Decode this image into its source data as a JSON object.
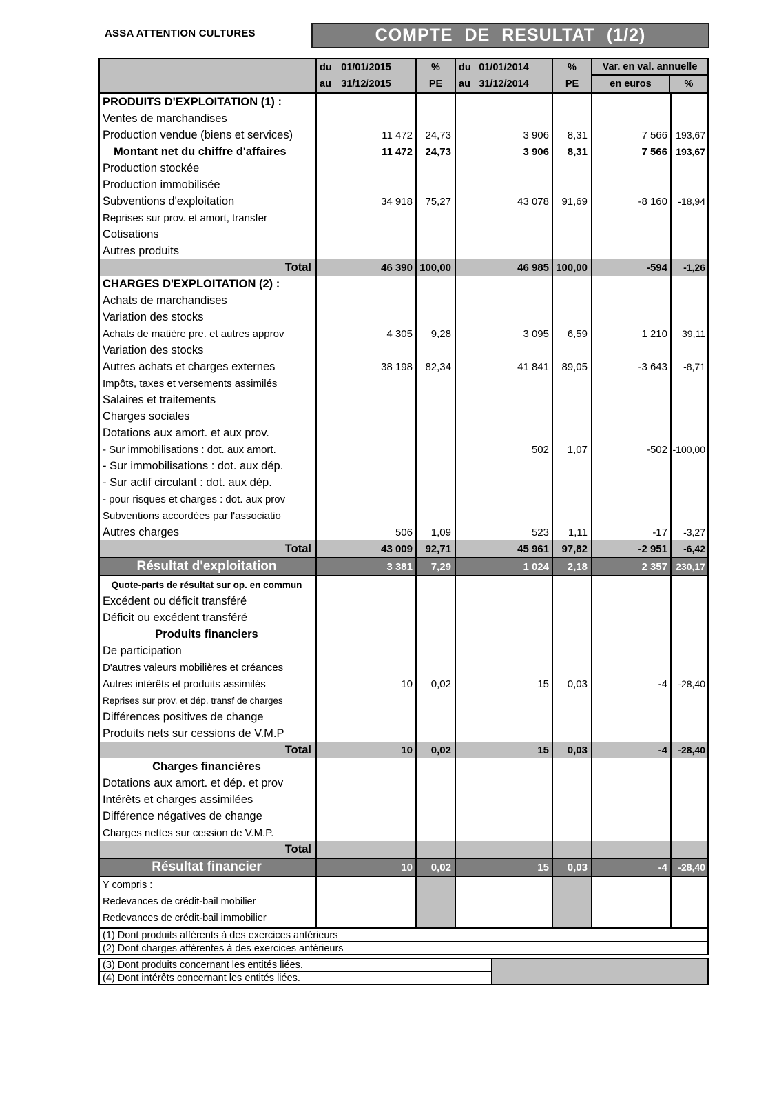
{
  "company": "ASSA ATTENTION CULTURES",
  "title": "COMPTE DE RESULTAT (1/2)",
  "colors": {
    "title_band_gray": "#7f7f7f",
    "result_band_gray": "#7f7f7f",
    "cell_silver": "#c0c0c0",
    "border_black": "#000000",
    "band_text_white": "#ffffff"
  },
  "table": {
    "header": {
      "period1": {
        "from": "du",
        "from_date": "01/01/2015",
        "to": "au",
        "to_date": "31/12/2015"
      },
      "pct1": {
        "top": "%",
        "bottom": "PE"
      },
      "period2": {
        "from": "du",
        "from_date": "01/01/2014",
        "to": "au",
        "to_date": "31/12/2014"
      },
      "pct2": {
        "top": "%",
        "bottom": "PE"
      },
      "variation": {
        "title": "Var. en val. annuelle",
        "col1": "en euros",
        "col2": "%"
      }
    },
    "rows": [
      {
        "l": "PRODUITS D'EXPLOITATION (1) :",
        "s": "section"
      },
      {
        "l": "Ventes de marchandises"
      },
      {
        "l": "Production vendue (biens et services)",
        "v": [
          "11 472",
          "24,73",
          "3 906",
          "8,31",
          "7 566",
          "193,67"
        ]
      },
      {
        "l": "Montant net du chiffre d'affaires",
        "s": "boldind",
        "v": [
          "11 472",
          "24,73",
          "3 906",
          "8,31",
          "7 566",
          "193,67"
        ]
      },
      {
        "l": "Production stockée"
      },
      {
        "l": "Production immobilisée"
      },
      {
        "l": "Subventions d'exploitation",
        "v": [
          "34 918",
          "75,27",
          "43 078",
          "91,69",
          "-8 160",
          "-18,94"
        ]
      },
      {
        "l": "Reprises sur prov. et amort, transfer",
        "s": "cond"
      },
      {
        "l": "Cotisations"
      },
      {
        "l": "Autres produits"
      },
      {
        "l": "Total",
        "s": "total",
        "v": [
          "46 390",
          "100,00",
          "46 985",
          "100,00",
          "-594",
          "-1,26"
        ]
      },
      {
        "l": "CHARGES D'EXPLOITATION (2) :",
        "s": "section"
      },
      {
        "l": "Achats de marchandises"
      },
      {
        "l": "Variation des stocks"
      },
      {
        "l": "Achats de matière pre. et autres approv",
        "s": "cond",
        "v": [
          "4 305",
          "9,28",
          "3 095",
          "6,59",
          "1 210",
          "39,11"
        ]
      },
      {
        "l": "Variation des stocks"
      },
      {
        "l": "Autres achats et charges externes",
        "v": [
          "38 198",
          "82,34",
          "41 841",
          "89,05",
          "-3 643",
          "-8,71"
        ]
      },
      {
        "l": "Impôts, taxes et versements assimilés",
        "s": "cond"
      },
      {
        "l": "Salaires et traitements"
      },
      {
        "l": "Charges sociales"
      },
      {
        "l": "Dotations aux amort. et aux prov."
      },
      {
        "l": "- Sur immobilisations : dot. aux amort.",
        "s": "cond",
        "v": [
          "",
          "",
          "502",
          "1,07",
          "-502",
          "-100,00"
        ]
      },
      {
        "l": "- Sur immobilisations : dot. aux dép."
      },
      {
        "l": "- Sur actif circulant : dot. aux dép."
      },
      {
        "l": "- pour risques et charges : dot. aux prov",
        "s": "cond"
      },
      {
        "l": "Subventions accordées par l'associatio",
        "s": "cond"
      },
      {
        "l": "Autres charges",
        "v": [
          "506",
          "1,09",
          "523",
          "1,11",
          "-17",
          "-3,27"
        ]
      },
      {
        "l": "Total",
        "s": "total",
        "v": [
          "43 009",
          "92,71",
          "45 961",
          "97,82",
          "-2 951",
          "-6,42"
        ]
      },
      {
        "l": "Résultat d'exploitation",
        "s": "band",
        "v": [
          "3 381",
          "7,29",
          "1 024",
          "2,18",
          "2 357",
          "230,17"
        ]
      },
      {
        "l": "Quote-parts de résultat sur op. en commun",
        "s": "smboldcenter"
      },
      {
        "l": "Excédent ou déficit transféré"
      },
      {
        "l": "Déficit ou excédent transféré"
      },
      {
        "l": "Produits financiers",
        "s": "boldcenter"
      },
      {
        "l": "De participation"
      },
      {
        "l": "D'autres valeurs mobilières et créances",
        "s": "cond"
      },
      {
        "l": "Autres intérêts et produits assimilés",
        "s": "cond",
        "v": [
          "10",
          "0,02",
          "15",
          "0,03",
          "-4",
          "-28,40"
        ]
      },
      {
        "l": "Reprises sur prov. et dép. transf de charges",
        "s": "sm"
      },
      {
        "l": "Différences positives de change"
      },
      {
        "l": "Produits nets sur cessions de V.M.P"
      },
      {
        "l": "Total",
        "s": "total",
        "v": [
          "10",
          "0,02",
          "15",
          "0,03",
          "-4",
          "-28,40"
        ]
      },
      {
        "l": "Charges financières",
        "s": "boldcenter"
      },
      {
        "l": "Dotations aux amort. et dép. et prov"
      },
      {
        "l": "Intérêts et charges assimilées"
      },
      {
        "l": "Différence négatives de change"
      },
      {
        "l": "Charges nettes sur cession de V.M.P.",
        "s": "cond"
      },
      {
        "l": "Total",
        "s": "total"
      },
      {
        "l": "Résultat financier",
        "s": "band",
        "v": [
          "10",
          "0,02",
          "15",
          "0,03",
          "-4",
          "-28,40"
        ]
      },
      {
        "l": "Y compris :",
        "s": "yc"
      },
      {
        "l": "Redevances de crédit-bail mobilier",
        "s": "yc"
      },
      {
        "l": "Redevances de crédit-bail immobilier",
        "s": "yc"
      }
    ]
  },
  "footnotes": [
    "(1) Dont produits afférents à des exercices antérieurs",
    "(2) Dont charges afférentes à des exercices antérieurs",
    "(3) Dont produits concernant les entités liées.",
    "(4) Dont intérêts concernant les entités liées."
  ]
}
